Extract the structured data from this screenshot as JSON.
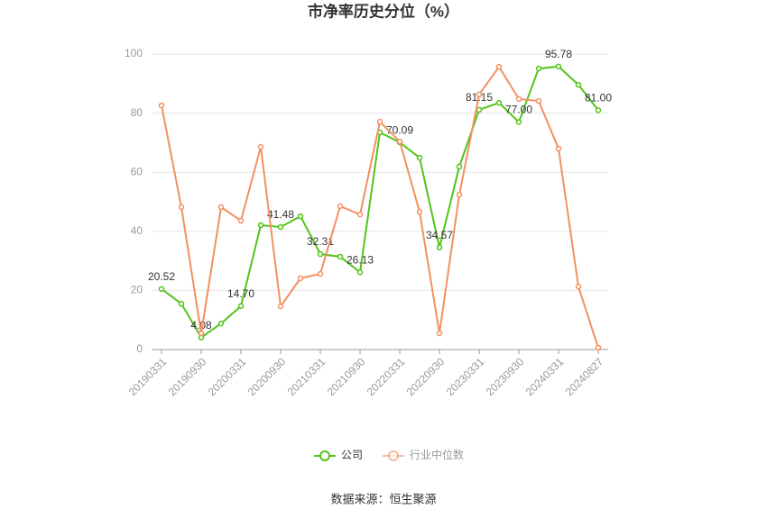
{
  "chart_data": {
    "type": "line",
    "title": "市净率历史分位（%）",
    "categories": [
      "20190331",
      null,
      "20190930",
      null,
      "20200331",
      null,
      "20200930",
      null,
      "20210331",
      null,
      "20210930",
      null,
      "20220331",
      null,
      "20220930",
      null,
      "20230331",
      null,
      "20230930",
      null,
      "20240331",
      null,
      "20240827"
    ],
    "series": [
      {
        "name": "公司",
        "color": "#52c41a",
        "values": [
          20.52,
          15.5,
          4.08,
          8.8,
          14.7,
          42.1,
          41.48,
          45.1,
          32.31,
          31.4,
          26.13,
          73.5,
          70.09,
          64.9,
          34.57,
          61.9,
          81.15,
          83.5,
          77.0,
          95.1,
          95.78,
          89.6,
          81.0
        ],
        "value_labels": [
          "20.52",
          null,
          "4.08",
          null,
          "14.70",
          null,
          "41.48",
          null,
          "32.31",
          null,
          "26.13",
          null,
          "70.09",
          null,
          "34.57",
          null,
          "81.15",
          null,
          "77.00",
          null,
          "95.78",
          null,
          "81.00"
        ]
      },
      {
        "name": "行业中位数",
        "color": "#f39061",
        "values": [
          82.6,
          48.2,
          5.5,
          48.2,
          43.6,
          68.6,
          14.6,
          24.1,
          25.6,
          48.5,
          45.7,
          77.1,
          70.4,
          46.6,
          5.5,
          52.4,
          86.3,
          95.7,
          84.8,
          84.1,
          68.0,
          21.3,
          0.6
        ]
      }
    ],
    "ylim": [
      0,
      100
    ],
    "yticks": [
      0,
      20,
      40,
      60,
      80,
      100
    ],
    "grid": true,
    "source": "数据来源：恒生聚源"
  }
}
